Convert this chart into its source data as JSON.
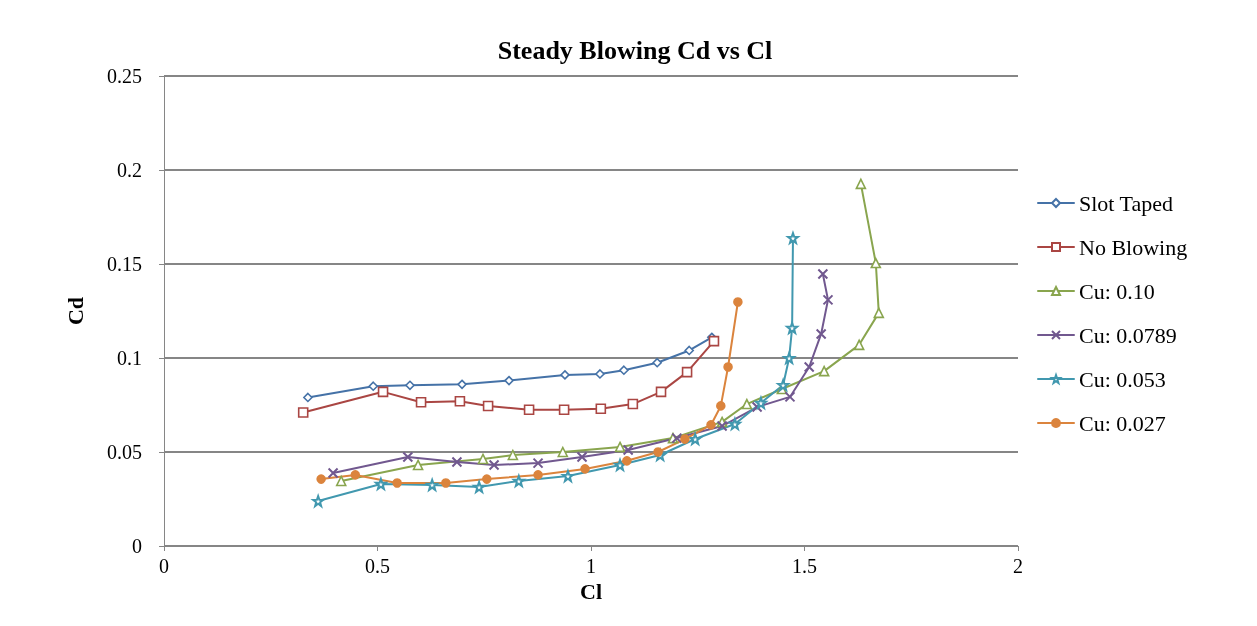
{
  "chart_data": {
    "type": "line",
    "title": "Steady Blowing Cd vs Cl",
    "xlabel": "Cl",
    "ylabel": "Cd",
    "xlim": [
      0,
      2
    ],
    "xticks": [
      0,
      0.5,
      1,
      1.5,
      2
    ],
    "ylim": [
      0,
      0.25
    ],
    "yticks": [
      0,
      0.05,
      0.1,
      0.15,
      0.2,
      0.25
    ],
    "grid": "y",
    "legend": "right",
    "line_style": "solid",
    "series": [
      {
        "name": "Slot Taped",
        "color": "#4572a7",
        "marker": "diamond",
        "x": [
          0.337,
          0.49,
          0.576,
          0.698,
          0.808,
          0.939,
          1.021,
          1.077,
          1.155,
          1.23,
          1.283
        ],
        "values": [
          0.079,
          0.085,
          0.0855,
          0.086,
          0.088,
          0.091,
          0.0915,
          0.0935,
          0.0975,
          0.104,
          0.111
        ]
      },
      {
        "name": "No Blowing",
        "color": "#aa4643",
        "marker": "square",
        "x": [
          0.326,
          0.513,
          0.602,
          0.693,
          0.759,
          0.855,
          0.937,
          1.023,
          1.098,
          1.164,
          1.225,
          1.288
        ],
        "values": [
          0.071,
          0.082,
          0.0765,
          0.077,
          0.0745,
          0.0725,
          0.0725,
          0.073,
          0.0755,
          0.082,
          0.0925,
          0.109
        ]
      },
      {
        "name": "Cu: 0.10",
        "color": "#89a54e",
        "marker": "triangle",
        "x": [
          0.415,
          0.595,
          0.747,
          0.817,
          0.934,
          1.068,
          1.192,
          1.307,
          1.365,
          1.447,
          1.546,
          1.628,
          1.674,
          1.667,
          1.632
        ],
        "values": [
          0.0346,
          0.0431,
          0.0463,
          0.0484,
          0.05,
          0.0527,
          0.0574,
          0.066,
          0.0755,
          0.0835,
          0.093,
          0.107,
          0.124,
          0.1505,
          0.1926
        ]
      },
      {
        "name": "Cu: 0.0789",
        "color": "#71588f",
        "marker": "cross",
        "x": [
          0.396,
          0.571,
          0.686,
          0.773,
          0.876,
          0.979,
          1.087,
          1.201,
          1.307,
          1.389,
          1.466,
          1.511,
          1.539,
          1.555,
          1.543
        ],
        "values": [
          0.0388,
          0.0473,
          0.0447,
          0.0431,
          0.0441,
          0.0473,
          0.0511,
          0.0574,
          0.0638,
          0.0739,
          0.0793,
          0.0952,
          0.1128,
          0.1309,
          0.1447
        ]
      },
      {
        "name": "Cu: 0.053",
        "color": "#4198af",
        "marker": "star",
        "x": [
          0.361,
          0.508,
          0.628,
          0.738,
          0.831,
          0.946,
          1.068,
          1.162,
          1.244,
          1.337,
          1.398,
          1.45,
          1.464,
          1.471,
          1.473
        ],
        "values": [
          0.0239,
          0.033,
          0.0325,
          0.0314,
          0.0346,
          0.0372,
          0.0431,
          0.0484,
          0.0569,
          0.0649,
          0.0761,
          0.0856,
          0.1,
          0.116,
          0.1638
        ]
      },
      {
        "name": "Cu: 0.027",
        "color": "#db843d",
        "marker": "circle",
        "x": [
          0.368,
          0.448,
          0.546,
          0.66,
          0.756,
          0.876,
          0.986,
          1.084,
          1.157,
          1.22,
          1.281,
          1.304,
          1.321,
          1.344
        ],
        "values": [
          0.0356,
          0.0378,
          0.0335,
          0.0335,
          0.0356,
          0.0378,
          0.041,
          0.0453,
          0.05,
          0.0569,
          0.0644,
          0.0745,
          0.0952,
          0.1298
        ]
      }
    ]
  }
}
